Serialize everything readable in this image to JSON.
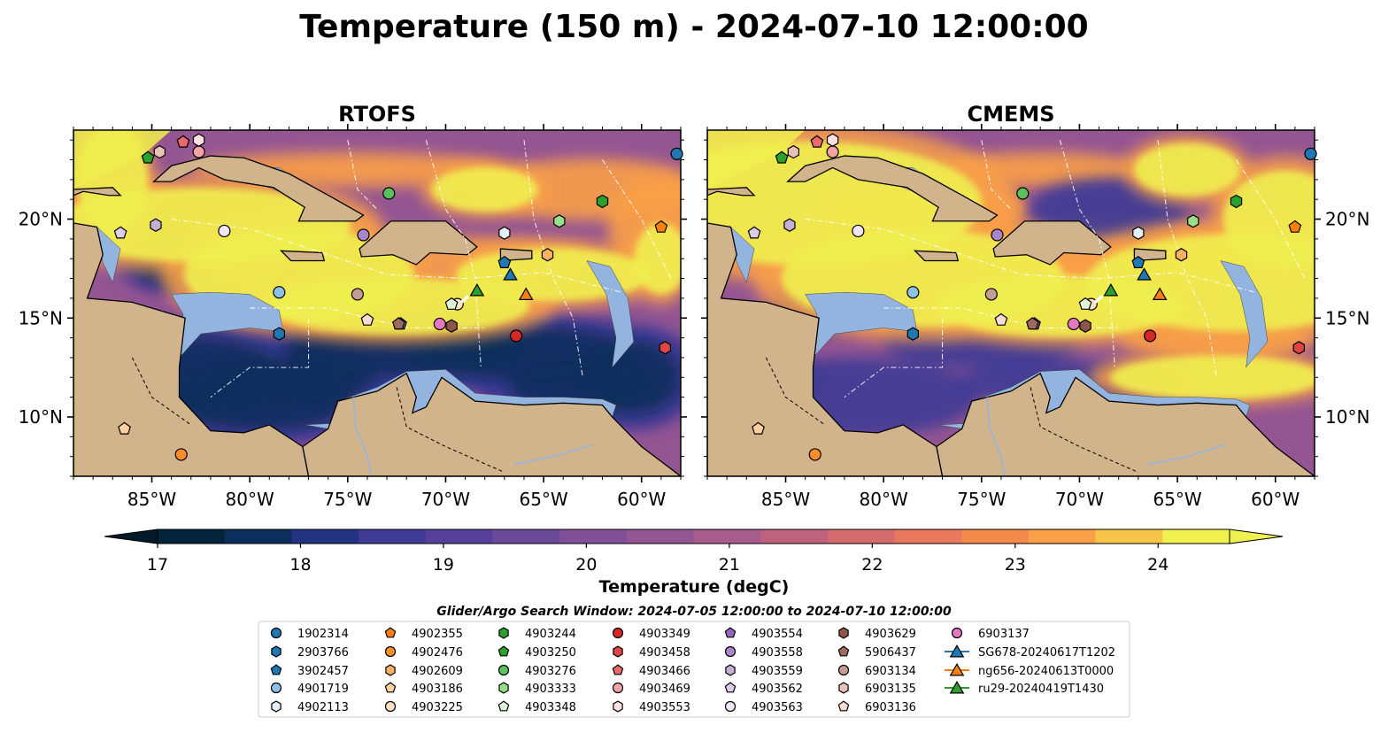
{
  "figure": {
    "title": "Temperature (150 m) - 2024-07-10 12:00:00",
    "search_window": "Glider/Argo Search Window: 2024-07-05 12:00:00 to 2024-07-10 12:00:00"
  },
  "maps": [
    {
      "title": "RTOFS",
      "key": "rtofs"
    },
    {
      "title": "CMEMS",
      "key": "cmems"
    }
  ],
  "axes": {
    "lon_ticks": [
      "85°W",
      "80°W",
      "75°W",
      "70°W",
      "65°W",
      "60°W"
    ],
    "lat_ticks": [
      "20°N",
      "15°N",
      "10°N"
    ],
    "lon_values": [
      -85,
      -80,
      -75,
      -70,
      -65,
      -60
    ],
    "lat_values": [
      20,
      15,
      10
    ],
    "lon_range": [
      -89.0,
      -58.0
    ],
    "lat_range": [
      7.0,
      24.5
    ]
  },
  "colorbar": {
    "label": "Temperature (degC)",
    "tick_labels": [
      "17",
      "18",
      "19",
      "20",
      "21",
      "22",
      "23",
      "24"
    ],
    "min": 17,
    "max": 24.5,
    "step": 0.5,
    "extend": "both",
    "colors": [
      "#03233a",
      "#0b2e5c",
      "#243381",
      "#3f3a95",
      "#57409a",
      "#6b4a9a",
      "#804f98",
      "#945593",
      "#a85c8c",
      "#be627f",
      "#d46b6e",
      "#e9785c",
      "#f38a4c",
      "#f9a048",
      "#f9c44a",
      "#f0f04f"
    ]
  },
  "colors": {
    "land": "#d2b48c",
    "shelf": "#94b4e0",
    "deep": "#032233",
    "hot": "#f0f04f",
    "warm": "#f9a048",
    "mid": "#945593",
    "cool": "#3f3a95"
  },
  "legend": {
    "items": [
      {
        "label": "1902314",
        "color": "#1f77b4",
        "marker": "circle"
      },
      {
        "label": "2903766",
        "color": "#1f77b4",
        "marker": "hexagon"
      },
      {
        "label": "3902457",
        "color": "#1f77b4",
        "marker": "pentagon"
      },
      {
        "label": "4901719",
        "color": "#8ec1e8",
        "marker": "circle"
      },
      {
        "label": "4902113",
        "color": "#e3f0fb",
        "marker": "hexagon"
      },
      {
        "label": "4902355",
        "color": "#ff7f0e",
        "marker": "pentagon"
      },
      {
        "label": "4902476",
        "color": "#ff8c2a",
        "marker": "circle"
      },
      {
        "label": "4902609",
        "color": "#ffb062",
        "marker": "hexagon"
      },
      {
        "label": "4903186",
        "color": "#ffd0a0",
        "marker": "pentagon"
      },
      {
        "label": "4903225",
        "color": "#ffe3c8",
        "marker": "circle"
      },
      {
        "label": "4903244",
        "color": "#2ca02c",
        "marker": "hexagon"
      },
      {
        "label": "4903250",
        "color": "#2ca02c",
        "marker": "pentagon"
      },
      {
        "label": "4903276",
        "color": "#5cc05c",
        "marker": "circle"
      },
      {
        "label": "4903333",
        "color": "#98df8a",
        "marker": "hexagon"
      },
      {
        "label": "4903348",
        "color": "#dff5d8",
        "marker": "pentagon"
      },
      {
        "label": "4903349",
        "color": "#d62728",
        "marker": "circle"
      },
      {
        "label": "4903458",
        "color": "#e04545",
        "marker": "hexagon"
      },
      {
        "label": "4903466",
        "color": "#ea6a6a",
        "marker": "pentagon"
      },
      {
        "label": "4903469",
        "color": "#f4a3a3",
        "marker": "circle"
      },
      {
        "label": "4903553",
        "color": "#fde0e0",
        "marker": "hexagon"
      },
      {
        "label": "4903554",
        "color": "#9467bd",
        "marker": "pentagon"
      },
      {
        "label": "4903558",
        "color": "#a985cc",
        "marker": "circle"
      },
      {
        "label": "4903559",
        "color": "#c5b0d5",
        "marker": "hexagon"
      },
      {
        "label": "4903562",
        "color": "#dccbea",
        "marker": "pentagon"
      },
      {
        "label": "4903563",
        "color": "#f0e6f7",
        "marker": "circle"
      },
      {
        "label": "4903629",
        "color": "#8c564b",
        "marker": "hexagon"
      },
      {
        "label": "5906437",
        "color": "#9e6a5f",
        "marker": "pentagon"
      },
      {
        "label": "6903134",
        "color": "#c49c94",
        "marker": "circle"
      },
      {
        "label": "6903135",
        "color": "#e8c1ba",
        "marker": "hexagon"
      },
      {
        "label": "6903136",
        "color": "#f7dcd6",
        "marker": "pentagon"
      },
      {
        "label": "6903137",
        "color": "#e377c2",
        "marker": "circle"
      },
      {
        "label": "SG678-20240617T1202",
        "color": "#1f77b4",
        "marker": "triangle-line"
      },
      {
        "label": "ng656-20240613T0000",
        "color": "#ff7f0e",
        "marker": "triangle-line"
      },
      {
        "label": "ru29-20240419T1430",
        "color": "#2ca02c",
        "marker": "triangle-line"
      }
    ]
  },
  "observations": [
    {
      "lon": -58.2,
      "lat": 23.3,
      "color": "#1f77b4",
      "marker": "circle"
    },
    {
      "lon": -78.5,
      "lat": 14.2,
      "color": "#1f77b4",
      "marker": "hexagon"
    },
    {
      "lon": -67.0,
      "lat": 17.8,
      "color": "#1f77b4",
      "marker": "pentagon"
    },
    {
      "lon": -78.5,
      "lat": 16.3,
      "color": "#8ec1e8",
      "marker": "circle"
    },
    {
      "lon": -67.0,
      "lat": 19.3,
      "color": "#e3f0fb",
      "marker": "hexagon"
    },
    {
      "lon": -59.0,
      "lat": 19.6,
      "color": "#ff7f0e",
      "marker": "pentagon"
    },
    {
      "lon": -83.5,
      "lat": 8.1,
      "color": "#ff8c2a",
      "marker": "circle"
    },
    {
      "lon": -64.8,
      "lat": 18.2,
      "color": "#ffb062",
      "marker": "hexagon"
    },
    {
      "lon": -86.4,
      "lat": 9.4,
      "color": "#ffd0a0",
      "marker": "pentagon"
    },
    {
      "lon": -69.4,
      "lat": 15.7,
      "color": "#ffe3c8",
      "marker": "circle"
    },
    {
      "lon": -62.0,
      "lat": 20.9,
      "color": "#2ca02c",
      "marker": "hexagon"
    },
    {
      "lon": -85.2,
      "lat": 23.1,
      "color": "#2ca02c",
      "marker": "pentagon"
    },
    {
      "lon": -72.9,
      "lat": 21.3,
      "color": "#5cc05c",
      "marker": "circle"
    },
    {
      "lon": -64.2,
      "lat": 19.9,
      "color": "#98df8a",
      "marker": "hexagon"
    },
    {
      "lon": -69.7,
      "lat": 15.7,
      "color": "#dff5d8",
      "marker": "pentagon"
    },
    {
      "lon": -66.4,
      "lat": 14.1,
      "color": "#d62728",
      "marker": "circle"
    },
    {
      "lon": -58.8,
      "lat": 13.5,
      "color": "#e04545",
      "marker": "hexagon"
    },
    {
      "lon": -83.4,
      "lat": 23.9,
      "color": "#ea6a6a",
      "marker": "pentagon"
    },
    {
      "lon": -82.6,
      "lat": 23.4,
      "color": "#f4a3a3",
      "marker": "circle"
    },
    {
      "lon": -82.6,
      "lat": 24.0,
      "color": "#fde0e0",
      "marker": "hexagon"
    },
    {
      "lon": -72.3,
      "lat": 14.7,
      "color": "#9467bd",
      "marker": "pentagon"
    },
    {
      "lon": -74.2,
      "lat": 19.2,
      "color": "#a985cc",
      "marker": "circle"
    },
    {
      "lon": -84.8,
      "lat": 19.7,
      "color": "#c5b0d5",
      "marker": "hexagon"
    },
    {
      "lon": -86.6,
      "lat": 19.3,
      "color": "#dccbea",
      "marker": "pentagon"
    },
    {
      "lon": -81.3,
      "lat": 19.4,
      "color": "#f0e6f7",
      "marker": "circle"
    },
    {
      "lon": -69.7,
      "lat": 14.6,
      "color": "#8c564b",
      "marker": "hexagon"
    },
    {
      "lon": -72.4,
      "lat": 14.7,
      "color": "#9e6a5f",
      "marker": "pentagon"
    },
    {
      "lon": -74.5,
      "lat": 16.2,
      "color": "#c49c94",
      "marker": "circle"
    },
    {
      "lon": -84.6,
      "lat": 23.4,
      "color": "#e8c1ba",
      "marker": "hexagon"
    },
    {
      "lon": -74.0,
      "lat": 14.9,
      "color": "#f7dcd6",
      "marker": "pentagon"
    },
    {
      "lon": -70.3,
      "lat": 14.7,
      "color": "#e377c2",
      "marker": "circle"
    },
    {
      "lon": -66.7,
      "lat": 17.2,
      "color": "#1f77b4",
      "marker": "triangle"
    },
    {
      "lon": -65.9,
      "lat": 16.2,
      "color": "#ff7f0e",
      "marker": "triangle"
    },
    {
      "lon": -68.4,
      "lat": 16.4,
      "color": "#2ca02c",
      "marker": "triangle"
    }
  ]
}
